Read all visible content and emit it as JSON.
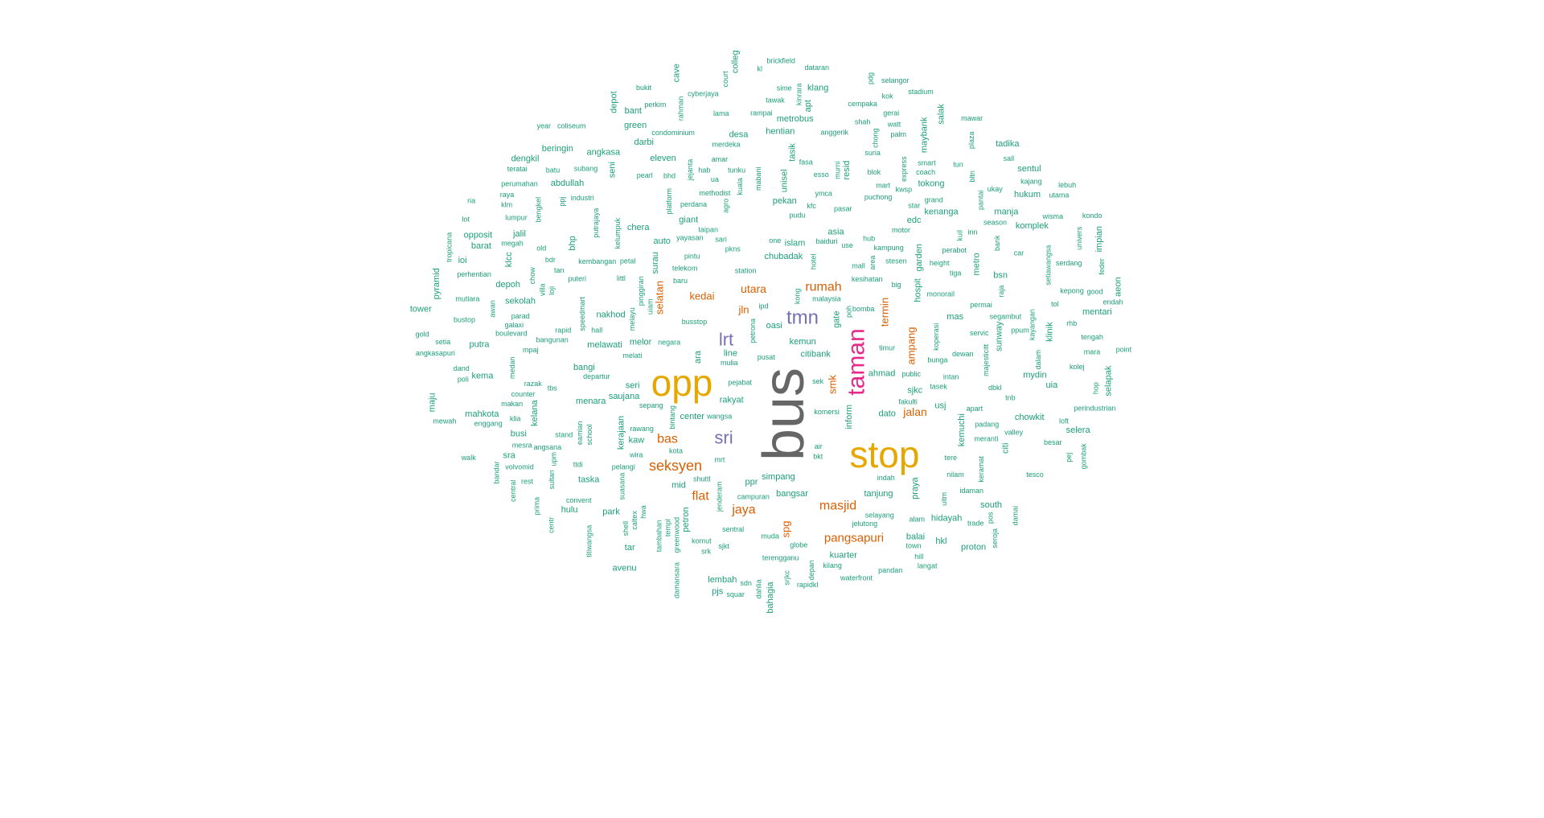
{
  "colors": {
    "level1": "#666666",
    "level2": "#e6a800",
    "level3": "#e7298a",
    "level4": "#7570b3",
    "level5": "#d95f02",
    "level6": "#1b9e77"
  },
  "words": [
    {
      "t": "bus",
      "lv": 1
    },
    {
      "t": "stop",
      "lv": 2
    },
    {
      "t": "opp",
      "lv": 2
    },
    {
      "t": "taman",
      "lv": 3
    },
    {
      "t": "tmn",
      "lv": 4
    },
    {
      "t": "sri",
      "lv": 4
    },
    {
      "t": "lrt",
      "lv": 4
    },
    {
      "t": "seksyen",
      "lv": 5
    },
    {
      "t": "rumah",
      "lv": 5
    },
    {
      "t": "masjid",
      "lv": 5
    },
    {
      "t": "pangsapuri",
      "lv": 5
    },
    {
      "t": "jaya",
      "lv": 5
    },
    {
      "t": "flat",
      "lv": 5
    },
    {
      "t": "bas",
      "lv": 5
    },
    {
      "t": "jalan",
      "lv": 5
    },
    {
      "t": "utara",
      "lv": 5
    },
    {
      "t": "kedai",
      "lv": 5
    },
    {
      "t": "jln",
      "lv": 5
    },
    {
      "t": "selatan",
      "lv": 5
    },
    {
      "t": "ampang",
      "lv": 5
    },
    {
      "t": "termin",
      "lv": 5
    },
    {
      "t": "smk",
      "lv": 5
    },
    {
      "t": "spg",
      "lv": 5
    },
    {
      "t": "desa",
      "lv": 6
    },
    {
      "t": "hentian",
      "lv": 6
    },
    {
      "t": "pasar",
      "lv": 6
    },
    {
      "t": "station",
      "lv": 6
    },
    {
      "t": "wisma",
      "lv": 6
    },
    {
      "t": "komplek",
      "lv": 6
    },
    {
      "t": "utama",
      "lv": 6
    },
    {
      "t": "puchong",
      "lv": 6
    },
    {
      "t": "damansara",
      "lv": 6
    },
    {
      "t": "sentral",
      "lv": 6
    },
    {
      "t": "pandan",
      "lv": 6
    },
    {
      "t": "park",
      "lv": 6
    },
    {
      "t": "indah",
      "lv": 6
    },
    {
      "t": "menara",
      "lv": 6
    },
    {
      "t": "rapidkl",
      "lv": 6
    },
    {
      "t": "subang",
      "lv": 6
    },
    {
      "t": "bukit",
      "lv": 6
    },
    {
      "t": "muda",
      "lv": 6
    },
    {
      "t": "rest",
      "lv": 6
    },
    {
      "t": "hotel",
      "lv": 6
    },
    {
      "t": "gombak",
      "lv": 6
    },
    {
      "t": "sentul",
      "lv": 6
    },
    {
      "t": "pusat",
      "lv": 6
    },
    {
      "t": "klinik",
      "lv": 6
    },
    {
      "t": "putra",
      "lv": 6
    },
    {
      "t": "bangsar",
      "lv": 6
    },
    {
      "t": "petrona",
      "lv": 6
    },
    {
      "t": "stesen",
      "lv": 6
    },
    {
      "t": "perdana",
      "lv": 6
    },
    {
      "t": "apt",
      "lv": 6
    },
    {
      "t": "timur",
      "lv": 6
    },
    {
      "t": "hop",
      "lv": 6
    },
    {
      "t": "serdang",
      "lv": 6
    },
    {
      "t": "court",
      "lv": 6
    },
    {
      "t": "bandar",
      "lv": 6
    },
    {
      "t": "batu",
      "lv": 6
    },
    {
      "t": "seri",
      "lv": 6
    },
    {
      "t": "tadika",
      "lv": 6
    },
    {
      "t": "barat",
      "lv": 6
    },
    {
      "t": "alam",
      "lv": 6
    },
    {
      "t": "bustop",
      "lv": 6
    },
    {
      "t": "dewan",
      "lv": 6
    },
    {
      "t": "kuala",
      "lv": 6
    },
    {
      "t": "klang",
      "lv": 6
    },
    {
      "t": "kolej",
      "lv": 6
    },
    {
      "t": "malaysia",
      "lv": 6
    },
    {
      "t": "hospit",
      "lv": 6
    },
    {
      "t": "maju",
      "lv": 6
    },
    {
      "t": "fasa",
      "lv": 6
    },
    {
      "t": "depan",
      "lv": 6
    },
    {
      "t": "bank",
      "lv": 6
    },
    {
      "t": "surau",
      "lv": 6
    },
    {
      "t": "seni",
      "lv": 6
    },
    {
      "t": "apart",
      "lv": 6
    },
    {
      "t": "sunway",
      "lv": 6
    },
    {
      "t": "tasik",
      "lv": 6
    },
    {
      "t": "shah",
      "lv": 6
    },
    {
      "t": "stand",
      "lv": 6
    },
    {
      "t": "lama",
      "lv": 6
    },
    {
      "t": "segambut",
      "lv": 6
    },
    {
      "t": "permai",
      "lv": 6
    },
    {
      "t": "titiwangsa",
      "lv": 6
    },
    {
      "t": "bkt",
      "lv": 6
    },
    {
      "t": "villa",
      "lv": 6
    },
    {
      "t": "motor",
      "lv": 6
    },
    {
      "t": "petal",
      "lv": 6
    },
    {
      "t": "mall",
      "lv": 6
    },
    {
      "t": "line",
      "lv": 6
    },
    {
      "t": "komersi",
      "lv": 6
    },
    {
      "t": "chong",
      "lv": 6
    },
    {
      "t": "shell",
      "lv": 6
    },
    {
      "t": "klm",
      "lv": 6
    },
    {
      "t": "baru",
      "lv": 6
    },
    {
      "t": "abdullah",
      "lv": 6
    },
    {
      "t": "jejanta",
      "lv": 6
    },
    {
      "t": "blok",
      "lv": 6
    },
    {
      "t": "hub",
      "lv": 6
    },
    {
      "t": "damai",
      "lv": 6
    },
    {
      "t": "univers",
      "lv": 6
    },
    {
      "t": "medan",
      "lv": 6
    },
    {
      "t": "melawati",
      "lv": 6
    },
    {
      "t": "citi",
      "lv": 6
    },
    {
      "t": "hab",
      "lv": 6
    },
    {
      "t": "dataran",
      "lv": 6
    },
    {
      "t": "perumahan",
      "lv": 6
    },
    {
      "t": "kelana",
      "lv": 6
    },
    {
      "t": "pintu",
      "lv": 6
    },
    {
      "t": "salak",
      "lv": 6
    },
    {
      "t": "mid",
      "lv": 6
    },
    {
      "t": "point",
      "lv": 6
    },
    {
      "t": "balai",
      "lv": 6
    },
    {
      "t": "plaza",
      "lv": 6
    },
    {
      "t": "eleven",
      "lv": 6
    },
    {
      "t": "gerai",
      "lv": 6
    },
    {
      "t": "srk",
      "lv": 6
    },
    {
      "t": "hkl",
      "lv": 6
    },
    {
      "t": "poli",
      "lv": 6
    },
    {
      "t": "dalam",
      "lv": 6
    },
    {
      "t": "bdr",
      "lv": 6
    },
    {
      "t": "perhentian",
      "lv": 6
    },
    {
      "t": "hall",
      "lv": 6
    },
    {
      "t": "mrt",
      "lv": 6
    },
    {
      "t": "car",
      "lv": 6
    },
    {
      "t": "jalil",
      "lv": 6
    },
    {
      "t": "bltn",
      "lv": 6
    },
    {
      "t": "sek",
      "lv": 6
    },
    {
      "t": "tesco",
      "lv": 6
    },
    {
      "t": "dato",
      "lv": 6
    },
    {
      "t": "ppj",
      "lv": 6
    },
    {
      "t": "setia",
      "lv": 6
    },
    {
      "t": "pantai",
      "lv": 6
    },
    {
      "t": "pudu",
      "lv": 6
    },
    {
      "t": "ria",
      "lv": 6
    },
    {
      "t": "cave",
      "lv": 6
    },
    {
      "t": "littl",
      "lv": 6
    },
    {
      "t": "tun",
      "lv": 6
    },
    {
      "t": "kl",
      "lv": 6
    },
    {
      "t": "tbs",
      "lv": 6
    },
    {
      "t": "usj",
      "lv": 6
    },
    {
      "t": "klia",
      "lv": 6
    },
    {
      "t": "tol",
      "lv": 6
    },
    {
      "t": "intan",
      "lv": 6
    },
    {
      "t": "giant",
      "lv": 6
    },
    {
      "t": "unisel",
      "lv": 6
    },
    {
      "t": "mara",
      "lv": 6
    },
    {
      "t": "bomba",
      "lv": 6
    },
    {
      "t": "maybank",
      "lv": 6
    },
    {
      "t": "keramat",
      "lv": 6
    },
    {
      "t": "jenderam",
      "lv": 6
    },
    {
      "t": "kondo",
      "lv": 6
    },
    {
      "t": "counter",
      "lv": 6
    },
    {
      "t": "kayangan",
      "lv": 6
    },
    {
      "t": "chowkit",
      "lv": 6
    },
    {
      "t": "kong",
      "lv": 6
    },
    {
      "t": "ukay",
      "lv": 6
    },
    {
      "t": "terengganu",
      "lv": 6
    },
    {
      "t": "angsana",
      "lv": 6
    },
    {
      "t": "sall",
      "lv": 6
    },
    {
      "t": "kepong",
      "lv": 6
    },
    {
      "t": "feder",
      "lv": 6
    },
    {
      "t": "coliseum",
      "lv": 6
    },
    {
      "t": "mahkota",
      "lv": 6
    },
    {
      "t": "condominium",
      "lv": 6
    },
    {
      "t": "tropicana",
      "lv": 6
    },
    {
      "t": "setiawangsa",
      "lv": 6
    },
    {
      "t": "convent",
      "lv": 6
    },
    {
      "t": "kaw",
      "lv": 6
    },
    {
      "t": "school",
      "lv": 6
    },
    {
      "t": "dbkl",
      "lv": 6
    },
    {
      "t": "sjkt",
      "lv": 6
    },
    {
      "t": "pinggiran",
      "lv": 6
    },
    {
      "t": "methodist",
      "lv": 6
    },
    {
      "t": "sepang",
      "lv": 6
    },
    {
      "t": "selapak",
      "lv": 6
    },
    {
      "t": "praya",
      "lv": 6
    },
    {
      "t": "awan",
      "lv": 6
    },
    {
      "t": "green",
      "lv": 6
    },
    {
      "t": "departur",
      "lv": 6
    },
    {
      "t": "bant",
      "lv": 6
    },
    {
      "t": "servic",
      "lv": 6
    },
    {
      "t": "volvomid",
      "lv": 6
    },
    {
      "t": "bangunan",
      "lv": 6
    },
    {
      "t": "citibank",
      "lv": 6
    },
    {
      "t": "kok",
      "lv": 6
    },
    {
      "t": "mart",
      "lv": 6
    },
    {
      "t": "mulia",
      "lv": 6
    },
    {
      "t": "klcc",
      "lv": 6
    },
    {
      "t": "uia",
      "lv": 6
    },
    {
      "t": "koperasi",
      "lv": 6
    },
    {
      "t": "darbi",
      "lv": 6
    },
    {
      "t": "grand",
      "lv": 6
    },
    {
      "t": "garden",
      "lv": 6
    },
    {
      "t": "suasana",
      "lv": 6
    },
    {
      "t": "stadium",
      "lv": 6
    },
    {
      "t": "uiam",
      "lv": 6
    },
    {
      "t": "upm",
      "lv": 6
    },
    {
      "t": "perindustrian",
      "lv": 6
    },
    {
      "t": "teratai",
      "lv": 6
    },
    {
      "t": "hulu",
      "lv": 6
    },
    {
      "t": "telekom",
      "lv": 6
    },
    {
      "t": "rampai",
      "lv": 6
    },
    {
      "t": "kemuchi",
      "lv": 6
    },
    {
      "t": "tawak",
      "lv": 6
    },
    {
      "t": "hill",
      "lv": 6
    },
    {
      "t": "rahman",
      "lv": 6
    },
    {
      "t": "oasi",
      "lv": 6
    },
    {
      "t": "globe",
      "lv": 6
    },
    {
      "t": "mas",
      "lv": 6
    },
    {
      "t": "manja",
      "lv": 6
    },
    {
      "t": "busstop",
      "lv": 6
    },
    {
      "t": "merdeka",
      "lv": 6
    },
    {
      "t": "hukum",
      "lv": 6
    },
    {
      "t": "watt",
      "lv": 6
    },
    {
      "t": "loji",
      "lv": 6
    },
    {
      "t": "mabani",
      "lv": 6
    },
    {
      "t": "selayang",
      "lv": 6
    },
    {
      "t": "kajang",
      "lv": 6
    },
    {
      "t": "good",
      "lv": 6
    },
    {
      "t": "tower",
      "lv": 6
    },
    {
      "t": "proton",
      "lv": 6
    },
    {
      "t": "bunga",
      "lv": 6
    },
    {
      "t": "star",
      "lv": 6
    },
    {
      "t": "gold",
      "lv": 6
    },
    {
      "t": "rapid",
      "lv": 6
    },
    {
      "t": "bhp",
      "lv": 6
    },
    {
      "t": "wangsa",
      "lv": 6
    },
    {
      "t": "one",
      "lv": 6
    },
    {
      "t": "kuil",
      "lv": 6
    },
    {
      "t": "inn",
      "lv": 6
    },
    {
      "t": "mewah",
      "lv": 6
    },
    {
      "t": "enggang",
      "lv": 6
    },
    {
      "t": "kenanga",
      "lv": 6
    },
    {
      "t": "kuarter",
      "lv": 6
    },
    {
      "t": "anggerik",
      "lv": 6
    },
    {
      "t": "kelumpuk",
      "lv": 6
    },
    {
      "t": "jelutong",
      "lv": 6
    },
    {
      "t": "nilam",
      "lv": 6
    },
    {
      "t": "pos",
      "lv": 6
    },
    {
      "t": "bengkel",
      "lv": 6
    },
    {
      "t": "ppr",
      "lv": 6
    },
    {
      "t": "razak",
      "lv": 6
    },
    {
      "t": "use",
      "lv": 6
    },
    {
      "t": "murni",
      "lv": 6
    },
    {
      "t": "tokong",
      "lv": 6
    },
    {
      "t": "colleg",
      "lv": 6
    },
    {
      "t": "dahlia",
      "lv": 6
    },
    {
      "t": "angkasapuri",
      "lv": 6
    },
    {
      "t": "beringin",
      "lv": 6
    },
    {
      "t": "bangi",
      "lv": 6
    },
    {
      "t": "ymca",
      "lv": 6
    },
    {
      "t": "pjs",
      "lv": 6
    },
    {
      "t": "pej",
      "lv": 6
    },
    {
      "t": "pdg",
      "lv": 6
    },
    {
      "t": "kemun",
      "lv": 6
    },
    {
      "t": "raya",
      "lv": 6
    },
    {
      "t": "aeon",
      "lv": 6
    },
    {
      "t": "raja",
      "lv": 6
    },
    {
      "t": "squar",
      "lv": 6
    },
    {
      "t": "pyramid",
      "lv": 6
    },
    {
      "t": "air",
      "lv": 6
    },
    {
      "t": "cempaka",
      "lv": 6
    },
    {
      "t": "speedmart",
      "lv": 6
    },
    {
      "t": "melor",
      "lv": 6
    },
    {
      "t": "chubadak",
      "lv": 6
    },
    {
      "t": "agro",
      "lv": 6
    },
    {
      "t": "boulevard",
      "lv": 6
    },
    {
      "t": "langat",
      "lv": 6
    },
    {
      "t": "year",
      "lv": 6
    },
    {
      "t": "fakulti",
      "lv": 6
    },
    {
      "t": "ppum",
      "lv": 6
    },
    {
      "t": "sekolah",
      "lv": 6
    },
    {
      "t": "kerajaan",
      "lv": 6
    },
    {
      "t": "esso",
      "lv": 6
    },
    {
      "t": "bintang",
      "lv": 6
    },
    {
      "t": "yayasan",
      "lv": 6
    },
    {
      "t": "hidayah",
      "lv": 6
    },
    {
      "t": "kfc",
      "lv": 6
    },
    {
      "t": "mawar",
      "lv": 6
    },
    {
      "t": "prima",
      "lv": 6
    },
    {
      "t": "sjkc",
      "lv": 6
    },
    {
      "t": "suria",
      "lv": 6
    },
    {
      "t": "baiduri",
      "lv": 6
    },
    {
      "t": "komut",
      "lv": 6
    },
    {
      "t": "monorail",
      "lv": 6
    },
    {
      "t": "chow",
      "lv": 6
    },
    {
      "t": "nakhod",
      "lv": 6
    },
    {
      "t": "rhb",
      "lv": 6
    },
    {
      "t": "mentari",
      "lv": 6
    },
    {
      "t": "putrajaya",
      "lv": 6
    },
    {
      "t": "area",
      "lv": 6
    },
    {
      "t": "trade",
      "lv": 6
    },
    {
      "t": "caltex",
      "lv": 6
    },
    {
      "t": "ttdi",
      "lv": 6
    },
    {
      "t": "tanjung",
      "lv": 6
    },
    {
      "t": "tengah",
      "lv": 6
    },
    {
      "t": "bahagia",
      "lv": 6
    },
    {
      "t": "waterfront",
      "lv": 6
    },
    {
      "t": "depot",
      "lv": 6
    },
    {
      "t": "majesticitt",
      "lv": 6
    },
    {
      "t": "melayu",
      "lv": 6
    },
    {
      "t": "ipd",
      "lv": 6
    },
    {
      "t": "edc",
      "lv": 6
    },
    {
      "t": "pelangi",
      "lv": 6
    },
    {
      "t": "ahmad",
      "lv": 6
    },
    {
      "t": "puteri",
      "lv": 6
    },
    {
      "t": "taska",
      "lv": 6
    },
    {
      "t": "height",
      "lv": 6
    },
    {
      "t": "lembah",
      "lv": 6
    },
    {
      "t": "besar",
      "lv": 6
    },
    {
      "t": "sime",
      "lv": 6
    },
    {
      "t": "inform",
      "lv": 6
    },
    {
      "t": "center",
      "lv": 6
    },
    {
      "t": "simpang",
      "lv": 6
    },
    {
      "t": "tere",
      "lv": 6
    },
    {
      "t": "valley",
      "lv": 6
    },
    {
      "t": "palm",
      "lv": 6
    },
    {
      "t": "impian",
      "lv": 6
    },
    {
      "t": "tar",
      "lv": 6
    },
    {
      "t": "petron",
      "lv": 6
    },
    {
      "t": "srjkc",
      "lv": 6
    },
    {
      "t": "auto",
      "lv": 6
    },
    {
      "t": "hwa",
      "lv": 6
    },
    {
      "t": "mesra",
      "lv": 6
    },
    {
      "t": "melati",
      "lv": 6
    },
    {
      "t": "old",
      "lv": 6
    },
    {
      "t": "smart",
      "lv": 6
    },
    {
      "t": "bhd",
      "lv": 6
    },
    {
      "t": "south",
      "lv": 6
    },
    {
      "t": "pkns",
      "lv": 6
    },
    {
      "t": "centr",
      "lv": 6
    },
    {
      "t": "big",
      "lv": 6
    },
    {
      "t": "negara",
      "lv": 6
    },
    {
      "t": "tambahan",
      "lv": 6
    },
    {
      "t": "depoh",
      "lv": 6
    },
    {
      "t": "pejabat",
      "lv": 6
    },
    {
      "t": "galaxi",
      "lv": 6
    },
    {
      "t": "islam",
      "lv": 6
    },
    {
      "t": "industri",
      "lv": 6
    },
    {
      "t": "kilang",
      "lv": 6
    },
    {
      "t": "town",
      "lv": 6
    },
    {
      "t": "busi",
      "lv": 6
    },
    {
      "t": "pearl",
      "lv": 6
    },
    {
      "t": "taipan",
      "lv": 6
    },
    {
      "t": "tnb",
      "lv": 6
    },
    {
      "t": "gate",
      "lv": 6
    },
    {
      "t": "tiga",
      "lv": 6
    },
    {
      "t": "sultan",
      "lv": 6
    },
    {
      "t": "cyberjaya",
      "lv": 6
    },
    {
      "t": "metrobus",
      "lv": 6
    },
    {
      "t": "walk",
      "lv": 6
    },
    {
      "t": "season",
      "lv": 6
    },
    {
      "t": "central",
      "lv": 6
    },
    {
      "t": "sdn",
      "lv": 6
    },
    {
      "t": "mydin",
      "lv": 6
    },
    {
      "t": "shuttl",
      "lv": 6
    },
    {
      "t": "platform",
      "lv": 6
    },
    {
      "t": "makan",
      "lv": 6
    },
    {
      "t": "tasek",
      "lv": 6
    },
    {
      "t": "padang",
      "lv": 6
    },
    {
      "t": "rawang",
      "lv": 6
    },
    {
      "t": "kembangan",
      "lv": 6
    },
    {
      "t": "rakyat",
      "lv": 6
    },
    {
      "t": "megah",
      "lv": 6
    },
    {
      "t": "templ",
      "lv": 6
    },
    {
      "t": "loft",
      "lv": 6
    },
    {
      "t": "amar",
      "lv": 6
    },
    {
      "t": "perkim",
      "lv": 6
    },
    {
      "t": "ara",
      "lv": 6
    },
    {
      "t": "selangor",
      "lv": 6
    },
    {
      "t": "chera",
      "lv": 6
    },
    {
      "t": "kesihatan",
      "lv": 6
    },
    {
      "t": "express",
      "lv": 6
    },
    {
      "t": "idaman",
      "lv": 6
    },
    {
      "t": "metro",
      "lv": 6
    },
    {
      "t": "resid",
      "lv": 6
    },
    {
      "t": "wira",
      "lv": 6
    },
    {
      "t": "meranti",
      "lv": 6
    },
    {
      "t": "poh",
      "lv": 6
    },
    {
      "t": "seroja",
      "lv": 6
    },
    {
      "t": "angkasa",
      "lv": 6
    },
    {
      "t": "uitm",
      "lv": 6
    },
    {
      "t": "asia",
      "lv": 6
    },
    {
      "t": "ioi",
      "lv": 6
    },
    {
      "t": "pekan",
      "lv": 6
    },
    {
      "t": "avenu",
      "lv": 6
    },
    {
      "t": "perabot",
      "lv": 6
    },
    {
      "t": "greenwood",
      "lv": 6
    },
    {
      "t": "kema",
      "lv": 6
    },
    {
      "t": "kwsp",
      "lv": 6
    },
    {
      "t": "sra",
      "lv": 6
    },
    {
      "t": "sari",
      "lv": 6
    },
    {
      "t": "kota",
      "lv": 6
    },
    {
      "t": "mutiara",
      "lv": 6
    },
    {
      "t": "selera",
      "lv": 6
    },
    {
      "t": "dengkil",
      "lv": 6
    },
    {
      "t": "kinrara",
      "lv": 6
    },
    {
      "t": "opposit",
      "lv": 6
    },
    {
      "t": "tunku",
      "lv": 6
    },
    {
      "t": "saujana",
      "lv": 6
    },
    {
      "t": "dand",
      "lv": 6
    },
    {
      "t": "brickfield",
      "lv": 6
    },
    {
      "t": "lumpur",
      "lv": 6
    },
    {
      "t": "kampung",
      "lv": 6
    },
    {
      "t": "lot",
      "lv": 6
    },
    {
      "t": "mpaj",
      "lv": 6
    },
    {
      "t": "coach",
      "lv": 6
    },
    {
      "t": "tan",
      "lv": 6
    },
    {
      "t": "bsn",
      "lv": 6
    },
    {
      "t": "public",
      "lv": 6
    },
    {
      "t": "lebuh",
      "lv": 6
    },
    {
      "t": "endah",
      "lv": 6
    },
    {
      "t": "eamian",
      "lv": 6
    },
    {
      "t": "parad",
      "lv": 6
    },
    {
      "t": "campuran",
      "lv": 6
    },
    {
      "t": "ua",
      "lv": 6
    }
  ]
}
